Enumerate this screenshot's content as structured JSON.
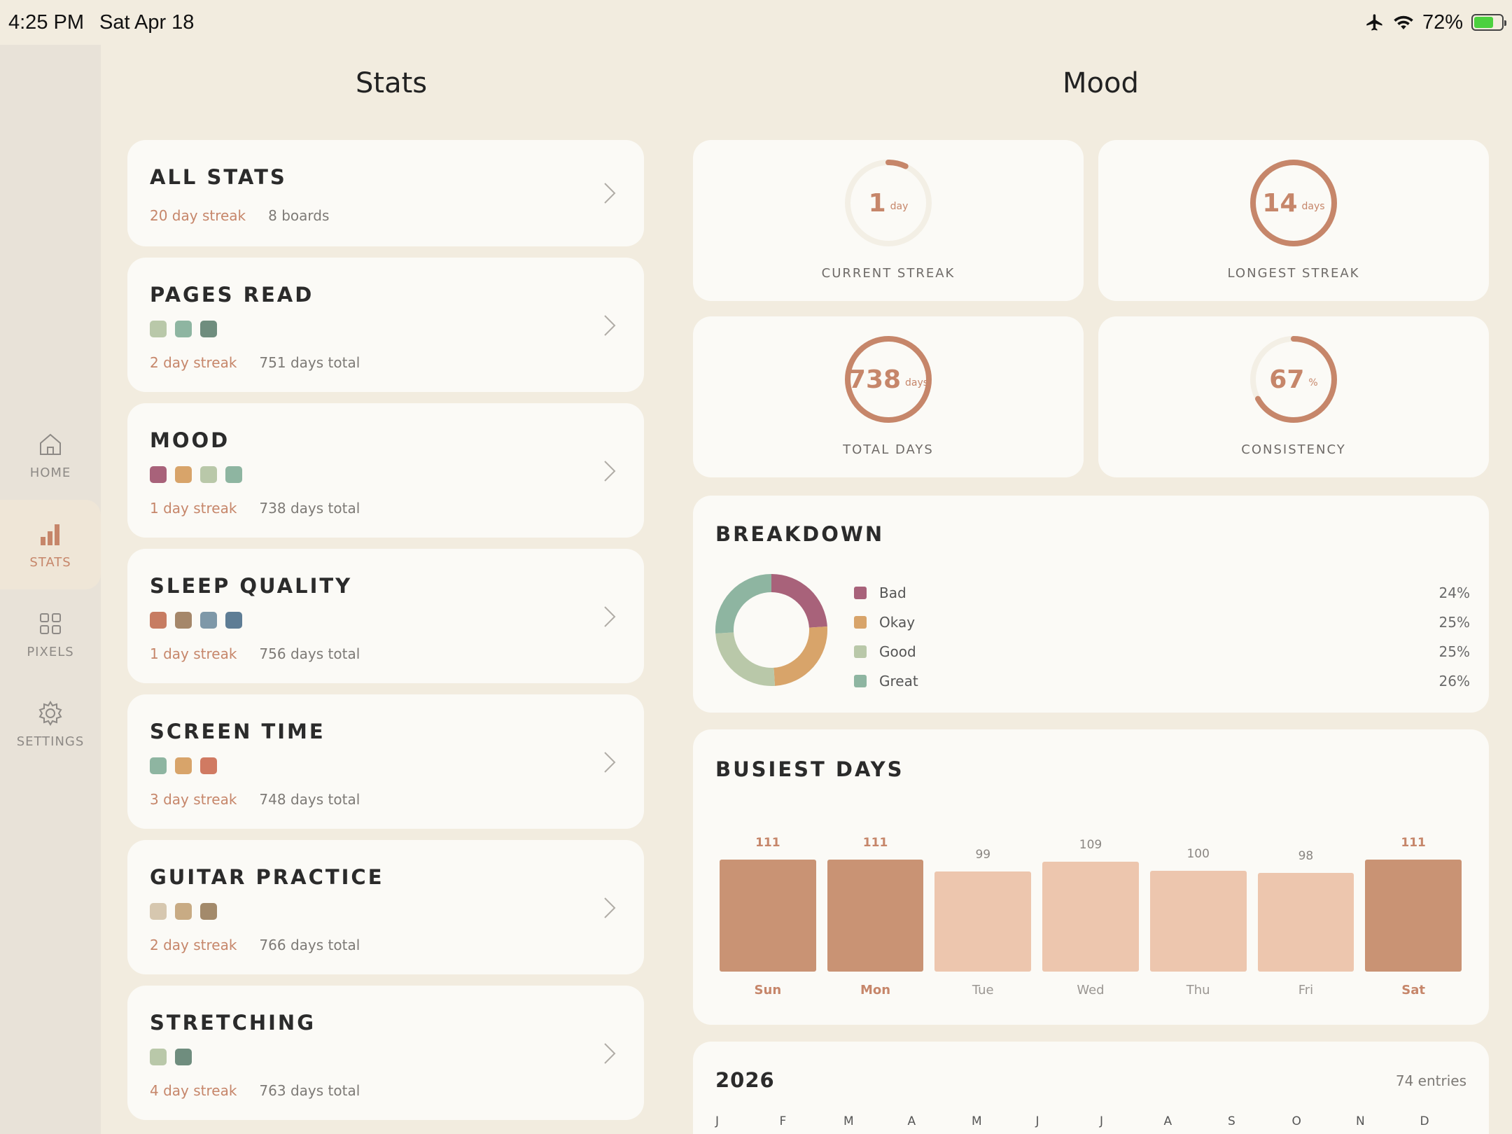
{
  "status_bar": {
    "time": "4:25 PM",
    "date": "Sat Apr 18",
    "battery": "72%",
    "battery_level": 0.72
  },
  "sidebar": {
    "items": [
      {
        "label": "HOME",
        "icon": "home-icon",
        "active": false
      },
      {
        "label": "STATS",
        "icon": "bar-chart-icon",
        "active": true
      },
      {
        "label": "PIXELS",
        "icon": "grid-icon",
        "active": false
      },
      {
        "label": "SETTINGS",
        "icon": "gear-icon",
        "active": false
      }
    ]
  },
  "left_column": {
    "title": "Stats"
  },
  "right_column": {
    "title": "Mood"
  },
  "all_stats": {
    "title": "ALL STATS",
    "streak": "20 day streak",
    "boards": "8 boards"
  },
  "boards": [
    {
      "title": "PAGES READ",
      "colors": [
        "#B9C8A9",
        "#8EB5A1",
        "#6F8D7E"
      ],
      "streak": "2 day streak",
      "total": "751 days total"
    },
    {
      "title": "MOOD",
      "colors": [
        "#A8627A",
        "#D8A46A",
        "#B9C8A9",
        "#8EB5A1"
      ],
      "streak": "1 day streak",
      "total": "738 days total"
    },
    {
      "title": "SLEEP QUALITY",
      "colors": [
        "#C77C62",
        "#A5876A",
        "#7E98A8",
        "#5E7D95"
      ],
      "streak": "1 day streak",
      "total": "756 days total"
    },
    {
      "title": "SCREEN TIME",
      "colors": [
        "#8EB5A1",
        "#D8A46A",
        "#D07A62"
      ],
      "streak": "3 day streak",
      "total": "748 days total"
    },
    {
      "title": "GUITAR PRACTICE",
      "colors": [
        "#D6C7AF",
        "#C8AB84",
        "#A38A6B"
      ],
      "streak": "2 day streak",
      "total": "766 days total"
    },
    {
      "title": "STRETCHING",
      "colors": [
        "#B9C8A9",
        "#6F8D7E"
      ],
      "streak": "4 day streak",
      "total": "763 days total"
    }
  ],
  "stat_cards": [
    {
      "label": "CURRENT STREAK",
      "value": "1",
      "unit": "day",
      "fraction": 0.07
    },
    {
      "label": "LONGEST STREAK",
      "value": "14",
      "unit": "days",
      "fraction": 1.0
    },
    {
      "label": "TOTAL DAYS",
      "value": "738",
      "unit": "days",
      "fraction": 1.0
    },
    {
      "label": "CONSISTENCY",
      "value": "67",
      "unit": "%",
      "fraction": 0.67
    }
  ],
  "breakdown": {
    "title": "BREAKDOWN",
    "items": [
      {
        "label": "Bad",
        "pct": "24%",
        "value": 24,
        "color": "#A8627A"
      },
      {
        "label": "Okay",
        "pct": "25%",
        "value": 25,
        "color": "#D8A46A"
      },
      {
        "label": "Good",
        "pct": "25%",
        "value": 25,
        "color": "#B9C8A9"
      },
      {
        "label": "Great",
        "pct": "26%",
        "value": 26,
        "color": "#8EB5A1"
      }
    ]
  },
  "busiest_days": {
    "title": "BUSIEST DAYS",
    "chart_data": {
      "type": "bar",
      "categories": [
        "Sun",
        "Mon",
        "Tue",
        "Wed",
        "Thu",
        "Fri",
        "Sat"
      ],
      "values": [
        111,
        111,
        99,
        109,
        100,
        98,
        111
      ],
      "highlight": [
        true,
        true,
        false,
        false,
        false,
        false,
        true
      ],
      "ylim": [
        0,
        111
      ]
    }
  },
  "year_panel": {
    "year": "2026",
    "entries": "74 entries",
    "months": [
      "J",
      "F",
      "M",
      "A",
      "M",
      "J",
      "J",
      "A",
      "S",
      "O",
      "N",
      "D"
    ]
  },
  "colors": {
    "accent": "#C6866A",
    "bar_strong": "#C99374",
    "bar_light": "#EDC6AE",
    "ring_track": "#F3EFE5"
  }
}
